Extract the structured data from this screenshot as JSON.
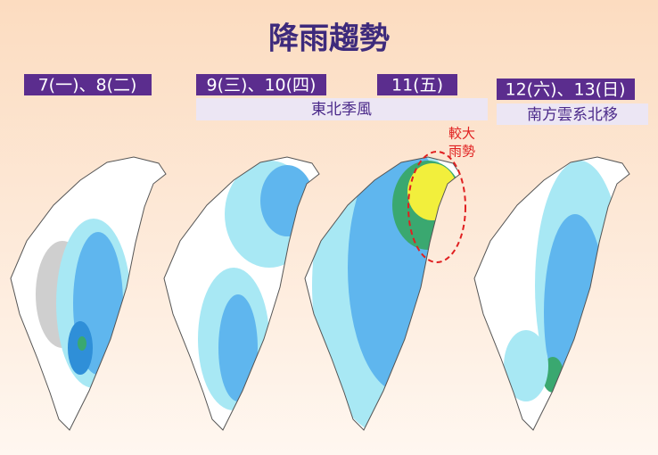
{
  "header": {
    "title": "降雨趨勢"
  },
  "panels": [
    {
      "date": "7(一)、8(二)"
    },
    {
      "date": "9(三)、10(四)"
    },
    {
      "date": "11(五)"
    },
    {
      "date": "12(六)、13(日)",
      "note": "南方雲系北移"
    }
  ],
  "groups": [
    {
      "note": "東北季風"
    }
  ],
  "annotation": {
    "lines": [
      "較大",
      "雨勢"
    ]
  }
}
